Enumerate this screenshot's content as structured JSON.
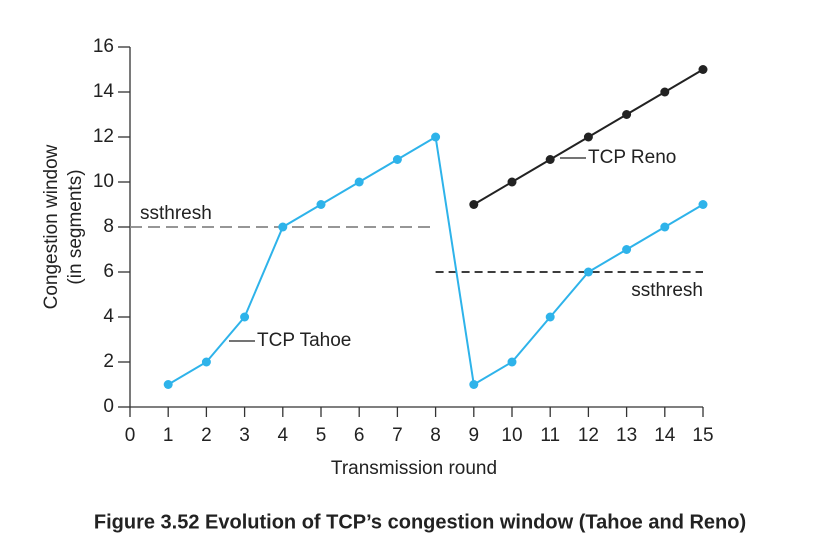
{
  "chart_data": {
    "type": "line",
    "xlabel": "Transmission round",
    "ylabel": [
      "Congestion window",
      "(in segments)"
    ],
    "caption": "Figure 3.52 Evolution of TCP’s congestion window (Tahoe and Reno)",
    "xlim": [
      0,
      15
    ],
    "xticks": [
      0,
      1,
      2,
      3,
      4,
      5,
      6,
      7,
      8,
      9,
      10,
      11,
      12,
      13,
      14,
      15
    ],
    "ylim": [
      0,
      16
    ],
    "yticks": [
      0,
      2,
      4,
      6,
      8,
      10,
      12,
      14,
      16
    ],
    "grid": false,
    "series": [
      {
        "name": "TCP Tahoe",
        "color": "#2eb3ea",
        "x": [
          1,
          2,
          3,
          4,
          5,
          6,
          7,
          8,
          9,
          10,
          11,
          12,
          13,
          14,
          15
        ],
        "values": [
          1,
          2,
          4,
          8,
          9,
          10,
          11,
          12,
          1,
          2,
          4,
          6,
          7,
          8,
          9
        ]
      },
      {
        "name": "TCP Reno",
        "color": "#222222",
        "x": [
          9,
          10,
          11,
          12,
          13,
          14,
          15
        ],
        "values": [
          9,
          10,
          11,
          12,
          13,
          14,
          15
        ]
      }
    ],
    "thresholds": [
      {
        "label": "ssthresh",
        "value": 8,
        "xrange": [
          0,
          8
        ],
        "color": "#888888"
      },
      {
        "label": "ssthresh",
        "value": 6,
        "xrange": [
          8,
          15
        ],
        "color": "#222222"
      }
    ]
  }
}
